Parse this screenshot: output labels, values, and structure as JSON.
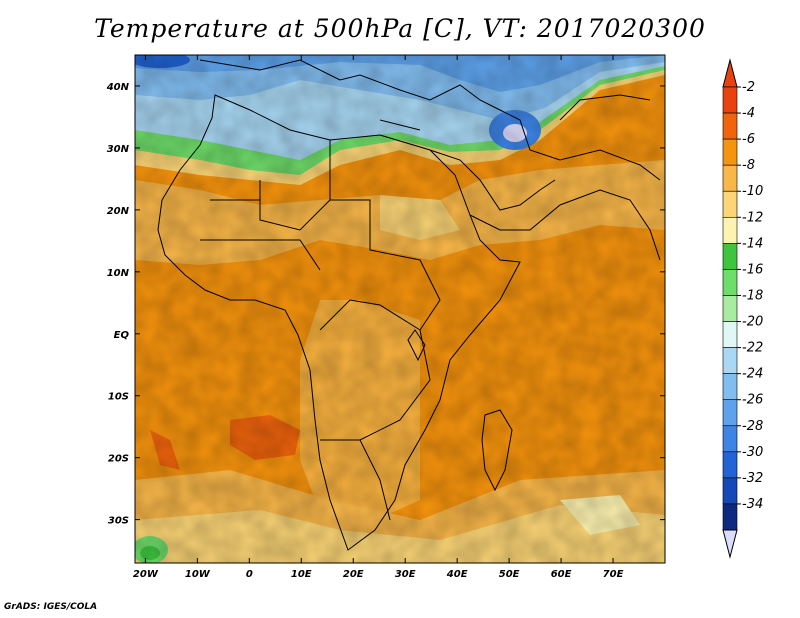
{
  "title": "Temperature at 500hPa [C], VT: 2017020300",
  "credit": "GrADS: IGES/COLA",
  "axes": {
    "lat_labels": [
      "40N",
      "30N",
      "20N",
      "10N",
      "EQ",
      "10S",
      "20S",
      "30S"
    ],
    "lat_values": [
      40,
      30,
      20,
      10,
      0,
      -10,
      -20,
      -30
    ],
    "lon_labels": [
      "20W",
      "10W",
      "0",
      "10E",
      "20E",
      "30E",
      "40E",
      "50E",
      "60E",
      "70E"
    ],
    "lon_values": [
      -20,
      -10,
      0,
      10,
      20,
      30,
      40,
      50,
      60,
      70
    ],
    "lon_range": [
      -22,
      80
    ],
    "lat_range": [
      -37,
      45
    ]
  },
  "colorbar": {
    "labels": [
      "-2",
      "-4",
      "-6",
      "-8",
      "-10",
      "-12",
      "-14",
      "-16",
      "-18",
      "-20",
      "-22",
      "-24",
      "-26",
      "-28",
      "-30",
      "-32",
      "-34"
    ],
    "colors": [
      "#e8420e",
      "#f0640c",
      "#f7940d",
      "#f9b749",
      "#fbd576",
      "#fdf3b0",
      "#3ec43e",
      "#6fdd6a",
      "#a7ec9f",
      "#dff8f6",
      "#a9d8f5",
      "#82bdf0",
      "#5ea2eb",
      "#3d84e6",
      "#2264d6",
      "#1648b8",
      "#0e2a80"
    ],
    "top_triangle_color": "#e8420e",
    "bottom_triangle_color": "#dcdcff"
  },
  "chart_data": {
    "type": "heatmap",
    "title": "Temperature at 500hPa [C], VT: 2017020300",
    "xlabel": "",
    "ylabel": "",
    "xlim": [
      -22,
      80
    ],
    "ylim": [
      -37,
      45
    ],
    "units": "C",
    "levels": [
      -2,
      -4,
      -6,
      -8,
      -10,
      -12,
      -14,
      -16,
      -18,
      -20,
      -22,
      -24,
      -26,
      -28,
      -30,
      -32,
      -34
    ],
    "valid_time": "2017020300"
  }
}
